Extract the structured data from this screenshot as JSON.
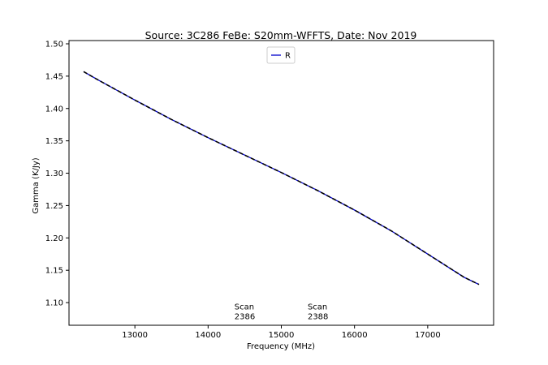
{
  "chart_data": {
    "type": "line",
    "title": "Source: 3C286 FeBe: S20mm-WFFTS, Date: Nov 2019",
    "xlabel": "Frequency (MHz)",
    "ylabel": "Gamma (K/Jy)",
    "xlim": [
      12100,
      17900
    ],
    "ylim": [
      1.065,
      1.505
    ],
    "xticks": [
      13000,
      14000,
      15000,
      16000,
      17000
    ],
    "yticks": [
      1.1,
      1.15,
      1.2,
      1.25,
      1.3,
      1.35,
      1.4,
      1.45,
      1.5
    ],
    "xtick_labels": [
      "13000",
      "14000",
      "15000",
      "16000",
      "17000"
    ],
    "ytick_labels": [
      "1.10",
      "1.15",
      "1.20",
      "1.25",
      "1.30",
      "1.35",
      "1.40",
      "1.45",
      "1.50"
    ],
    "legend": {
      "placement": "top-center",
      "entries": [
        "R"
      ]
    },
    "grid": false,
    "series": [
      {
        "name": "R",
        "color": "#0000cc",
        "style": "solid",
        "x": [
          12300,
          12500,
          13000,
          13500,
          14000,
          14500,
          15000,
          15500,
          16000,
          16500,
          17000,
          17500,
          17700
        ],
        "y": [
          1.457,
          1.444,
          1.413,
          1.383,
          1.355,
          1.328,
          1.301,
          1.273,
          1.243,
          1.211,
          1.175,
          1.139,
          1.128
        ]
      },
      {
        "color": "#000000",
        "style": "dashed",
        "x": [
          12300,
          12500,
          13000,
          13500,
          14000,
          14500,
          15000,
          15500,
          16000,
          16500,
          17000,
          17500,
          17700
        ],
        "y": [
          1.457,
          1.444,
          1.413,
          1.383,
          1.355,
          1.328,
          1.301,
          1.273,
          1.243,
          1.211,
          1.175,
          1.139,
          1.128
        ]
      }
    ],
    "annotations": [
      {
        "lines": [
          "Scan",
          "2386"
        ],
        "x": 14360,
        "y": 1.082
      },
      {
        "lines": [
          "Scan",
          "2388"
        ],
        "x": 15360,
        "y": 1.082
      }
    ]
  }
}
